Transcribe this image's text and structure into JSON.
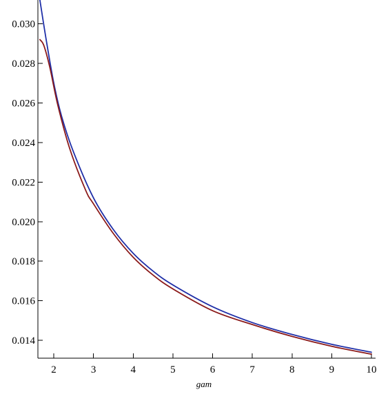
{
  "chart_data": {
    "type": "line",
    "title": "",
    "xlabel": "gam",
    "ylabel": "",
    "xlim": [
      1.6,
      10
    ],
    "ylim": [
      0.0131,
      0.0312
    ],
    "x_ticks": [
      2,
      3,
      4,
      5,
      6,
      7,
      8,
      9,
      10
    ],
    "x_tick_labels": [
      "2",
      "3",
      "4",
      "5",
      "6",
      "7",
      "8",
      "9",
      "10"
    ],
    "y_ticks": [
      0.014,
      0.016,
      0.018,
      0.02,
      0.022,
      0.024,
      0.026,
      0.028,
      0.03
    ],
    "y_tick_labels": [
      "0.014",
      "0.016",
      "0.018",
      "0.020",
      "0.022",
      "0.024",
      "0.026",
      "0.028",
      "0.030"
    ],
    "grid": false,
    "series": [
      {
        "color": "#1f2fa8",
        "x": [
          1.65,
          1.8,
          2.0,
          2.2,
          2.5,
          3.0,
          3.5,
          4.0,
          4.5,
          5.0,
          6.0,
          7.0,
          8.0,
          9.0,
          10.0
        ],
        "values": [
          0.0312,
          0.0293,
          0.027,
          0.0253,
          0.0235,
          0.0212,
          0.0196,
          0.0184,
          0.0175,
          0.0168,
          0.0157,
          0.0149,
          0.0143,
          0.0138,
          0.0134
        ]
      },
      {
        "color": "#8b1a1a",
        "x": [
          1.65,
          1.75,
          1.9,
          2.1,
          2.4,
          2.8,
          3.0,
          3.5,
          4.0,
          4.5,
          5.0,
          6.0,
          7.0,
          8.0,
          9.0,
          10.0
        ],
        "values": [
          0.0292,
          0.0289,
          0.0278,
          0.0259,
          0.0237,
          0.0216,
          0.0209,
          0.0194,
          0.0182,
          0.0173,
          0.0166,
          0.0155,
          0.0148,
          0.0142,
          0.0137,
          0.0133
        ]
      }
    ]
  }
}
